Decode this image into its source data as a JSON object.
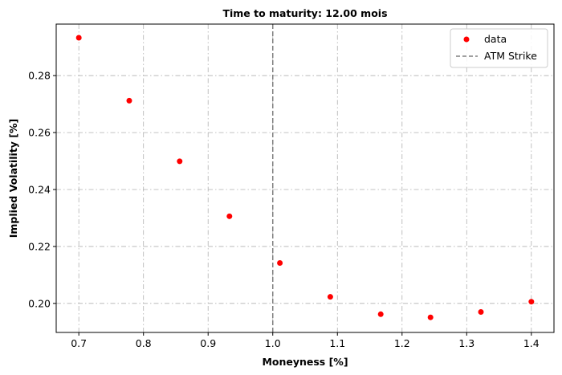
{
  "chart_data": {
    "type": "scatter",
    "title": "Time to maturity: 12.00 mois",
    "xlabel": "Moneyness [%]",
    "ylabel": "Implied Volatility [%]",
    "xlim": [
      0.665,
      1.435
    ],
    "ylim": [
      0.1898,
      0.2981
    ],
    "xticks": [
      0.7,
      0.8,
      0.9,
      1.0,
      1.1,
      1.2,
      1.3,
      1.4
    ],
    "xtick_labels": [
      "0.7",
      "0.8",
      "0.9",
      "1.0",
      "1.1",
      "1.2",
      "1.3",
      "1.4"
    ],
    "yticks": [
      0.2,
      0.22,
      0.24,
      0.26,
      0.28
    ],
    "ytick_labels": [
      "0.20",
      "0.22",
      "0.24",
      "0.26",
      "0.28"
    ],
    "grid": true,
    "legend_position": "top-right",
    "series": [
      {
        "name": "data",
        "color": "#ff0000",
        "x": [
          0.7,
          0.778,
          0.856,
          0.933,
          1.011,
          1.089,
          1.167,
          1.244,
          1.322,
          1.4
        ],
        "y": [
          0.2933,
          0.2712,
          0.2499,
          0.2306,
          0.2142,
          0.2023,
          0.1962,
          0.1951,
          0.197,
          0.2006
        ]
      }
    ],
    "vline": {
      "name": "ATM Strike",
      "x": 1.0,
      "color": "#808080",
      "style": "dashed"
    }
  }
}
